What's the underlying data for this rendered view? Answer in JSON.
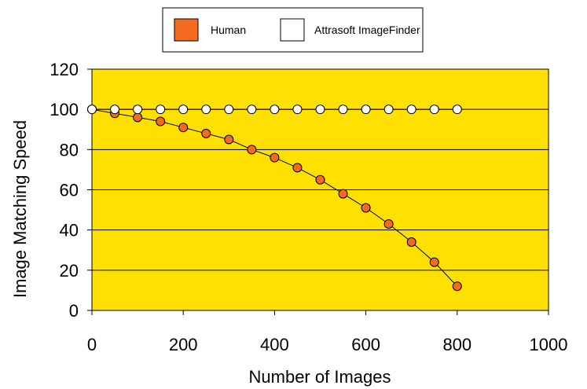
{
  "chart_data": {
    "type": "line",
    "title": "",
    "xlabel": "Number of Images",
    "ylabel": "Image Matching Speed",
    "xlim": [
      0,
      1000
    ],
    "ylim": [
      0,
      120
    ],
    "x_ticks": [
      "0",
      "200",
      "400",
      "600",
      "800",
      "1000"
    ],
    "y_ticks": [
      "0",
      "20",
      "40",
      "60",
      "80",
      "100",
      "120"
    ],
    "grid": "horizontal",
    "legend_position": "top-center",
    "plot_background": "#FFE000",
    "series": [
      {
        "name": "Human",
        "color": "#F26B21",
        "marker": "circle",
        "x": [
          0,
          50,
          100,
          150,
          200,
          250,
          300,
          350,
          400,
          450,
          500,
          550,
          600,
          650,
          700,
          750,
          800
        ],
        "y": [
          100,
          98,
          96,
          94,
          91,
          88,
          85,
          80,
          76,
          71,
          65,
          58,
          51,
          43,
          34,
          24,
          12
        ]
      },
      {
        "name": "Attrasoft ImageFinder",
        "color": "#FFFFFF",
        "marker": "circle",
        "x": [
          0,
          50,
          100,
          150,
          200,
          250,
          300,
          350,
          400,
          450,
          500,
          550,
          600,
          650,
          700,
          750,
          800
        ],
        "y": [
          100,
          100,
          100,
          100,
          100,
          100,
          100,
          100,
          100,
          100,
          100,
          100,
          100,
          100,
          100,
          100,
          100
        ]
      }
    ]
  }
}
